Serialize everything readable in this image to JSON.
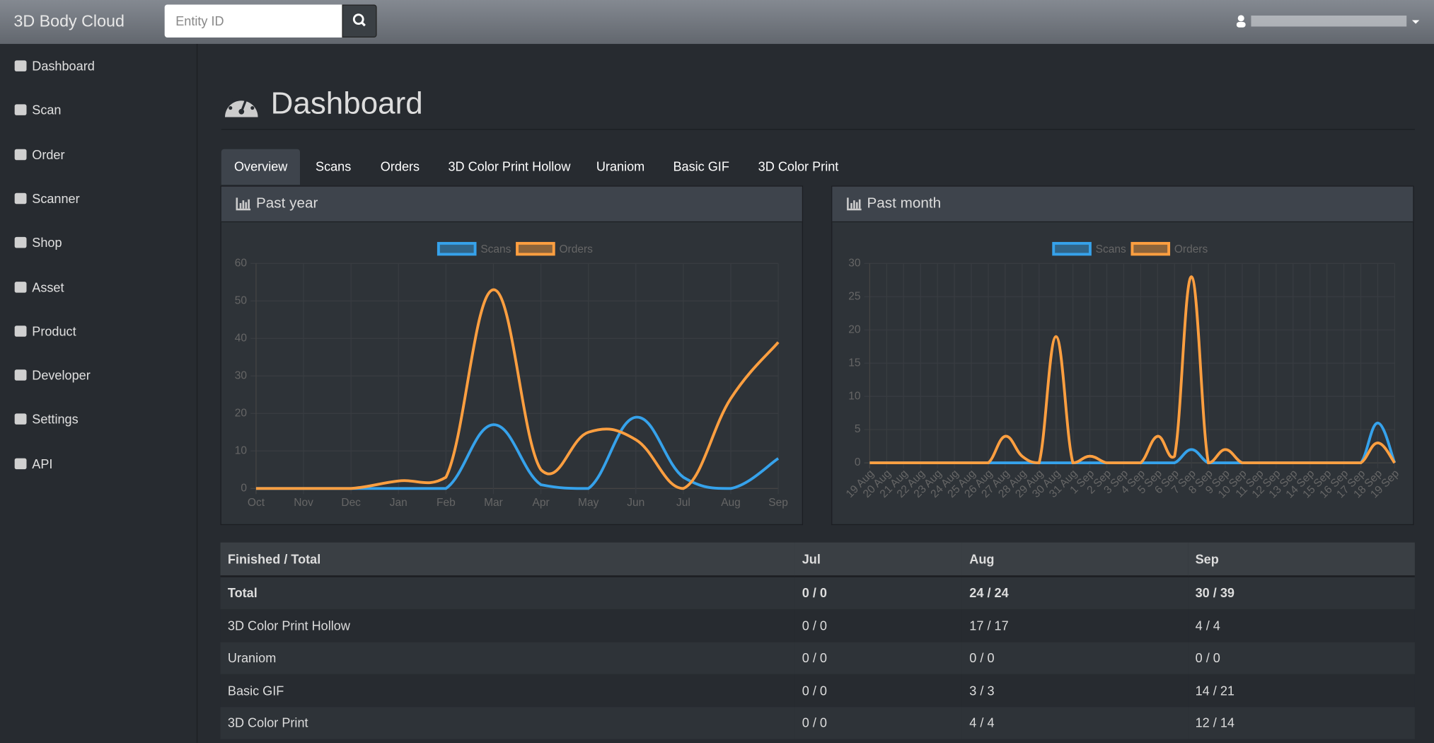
{
  "header": {
    "brand": "3D Body Cloud",
    "search_placeholder": "Entity ID"
  },
  "sidebar": {
    "items": [
      "Dashboard",
      "Scan",
      "Order",
      "Scanner",
      "Shop",
      "Asset",
      "Product",
      "Developer",
      "Settings",
      "API"
    ]
  },
  "page": {
    "title": "Dashboard",
    "tabs": [
      "Overview",
      "Scans",
      "Orders",
      "3D Color Print Hollow",
      "Uraniom",
      "Basic GIF",
      "3D Color Print"
    ],
    "active_tab": 0
  },
  "chart_data": [
    {
      "type": "line",
      "title": "Past year",
      "categories": [
        "Oct",
        "Nov",
        "Dec",
        "Jan",
        "Feb",
        "Mar",
        "Apr",
        "May",
        "Jun",
        "Jul",
        "Aug",
        "Sep"
      ],
      "series": [
        {
          "name": "Scans",
          "color": "#36a2eb",
          "values": [
            0,
            0,
            0,
            0,
            0,
            17,
            1,
            0,
            19,
            3,
            0,
            8
          ]
        },
        {
          "name": "Orders",
          "color": "#ff9f40",
          "values": [
            0,
            0,
            0,
            2,
            3,
            53,
            5,
            15,
            13,
            0,
            24,
            39
          ]
        }
      ],
      "ylim": [
        0,
        60
      ],
      "yticks": [
        0,
        10,
        20,
        30,
        40,
        50,
        60
      ],
      "grid": true,
      "legend_position": "top"
    },
    {
      "type": "line",
      "title": "Past month",
      "categories": [
        "19 Aug",
        "20 Aug",
        "21 Aug",
        "22 Aug",
        "23 Aug",
        "24 Aug",
        "25 Aug",
        "26 Aug",
        "27 Aug",
        "28 Aug",
        "29 Aug",
        "30 Aug",
        "31 Aug",
        "1 Sep",
        "2 Sep",
        "3 Sep",
        "4 Sep",
        "5 Sep",
        "6 Sep",
        "7 Sep",
        "8 Sep",
        "9 Sep",
        "10 Sep",
        "11 Sep",
        "12 Sep",
        "13 Sep",
        "14 Sep",
        "15 Sep",
        "16 Sep",
        "17 Sep",
        "18 Sep",
        "19 Sep"
      ],
      "series": [
        {
          "name": "Scans",
          "color": "#36a2eb",
          "values": [
            0,
            0,
            0,
            0,
            0,
            0,
            0,
            0,
            0,
            0,
            0,
            0,
            0,
            0,
            0,
            0,
            0,
            0,
            0,
            2,
            0,
            0,
            0,
            0,
            0,
            0,
            0,
            0,
            0,
            0,
            6,
            0
          ]
        },
        {
          "name": "Orders",
          "color": "#ff9f40",
          "values": [
            0,
            0,
            0,
            0,
            0,
            0,
            0,
            0,
            4,
            1,
            0,
            19,
            0,
            1,
            0,
            0,
            0,
            4,
            1,
            28,
            0,
            2,
            0,
            0,
            0,
            0,
            0,
            0,
            0,
            0,
            3,
            0
          ]
        }
      ],
      "ylim": [
        0,
        30
      ],
      "yticks": [
        0,
        5,
        10,
        15,
        20,
        25,
        30
      ],
      "grid": true,
      "legend_position": "top",
      "rotate_x_labels": true
    }
  ],
  "table": {
    "header": [
      "Finished / Total",
      "Jul",
      "Aug",
      "Sep"
    ],
    "rows": [
      [
        "Total",
        "0 / 0",
        "24 / 24",
        "30 / 39"
      ],
      [
        "3D Color Print Hollow",
        "0 / 0",
        "17 / 17",
        "4 / 4"
      ],
      [
        "Uraniom",
        "0 / 0",
        "0 / 0",
        "0 / 0"
      ],
      [
        "Basic GIF",
        "0 / 0",
        "3 / 3",
        "14 / 21"
      ],
      [
        "3D Color Print",
        "0 / 0",
        "4 / 4",
        "12 / 14"
      ]
    ],
    "bold_rows": [
      0
    ]
  }
}
